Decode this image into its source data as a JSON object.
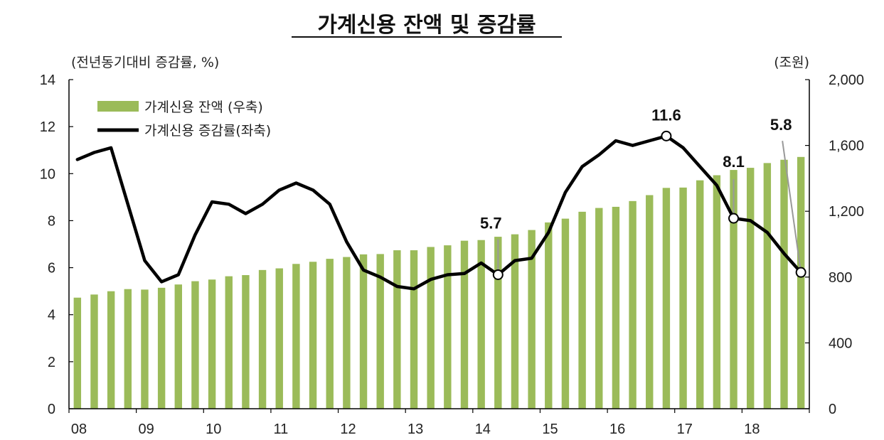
{
  "chart_data": {
    "type": "bar+line",
    "title": "가계신용 잔액 및 증감률",
    "left_axis": {
      "label": "(전년동기대비 증감률, %)",
      "ylim": [
        0,
        14
      ],
      "ticks": [
        "0",
        "2",
        "4",
        "6",
        "8",
        "10",
        "12",
        "14"
      ]
    },
    "right_axis": {
      "label": "(조원)",
      "ylim": [
        0,
        2000
      ],
      "ticks": [
        "0",
        "400",
        "800",
        "1,200",
        "1,600",
        "2,000"
      ]
    },
    "x_axis": {
      "tick_labels": [
        "08",
        "09",
        "10",
        "11",
        "12",
        "13",
        "14",
        "15",
        "16",
        "17",
        "18"
      ]
    },
    "legend": {
      "placement": "top-left",
      "entries": [
        "가계신용 잔액 (우축)",
        "가계신용 증감률(좌축)"
      ]
    },
    "colors": {
      "bar": "#9bbb59",
      "line": "#000000",
      "axis": "#000000"
    },
    "series": [
      {
        "name": "가계신용 잔액 (우축)",
        "axis": "right",
        "type": "bar",
        "values": [
          675,
          694,
          714,
          727,
          724,
          735,
          755,
          775,
          785,
          805,
          812,
          843,
          853,
          880,
          893,
          911,
          922,
          938,
          940,
          963,
          963,
          983,
          993,
          1021,
          1025,
          1045,
          1060,
          1086,
          1132,
          1155,
          1197,
          1220,
          1227,
          1262,
          1298,
          1342,
          1344,
          1388,
          1419,
          1451,
          1464,
          1493,
          1513,
          1530
        ]
      },
      {
        "name": "가계신용 증감률(좌축)",
        "axis": "left",
        "type": "line",
        "values": [
          10.6,
          10.9,
          11.1,
          8.7,
          6.3,
          5.4,
          5.7,
          7.4,
          8.8,
          8.7,
          8.3,
          8.7,
          9.3,
          9.6,
          9.3,
          8.7,
          7.1,
          5.9,
          5.6,
          5.2,
          5.1,
          5.5,
          5.7,
          5.75,
          6.2,
          5.7,
          6.3,
          6.4,
          7.5,
          9.2,
          10.3,
          10.8,
          11.4,
          11.2,
          11.4,
          11.6,
          11.1,
          10.3,
          9.5,
          8.1,
          8.0,
          7.5,
          6.6,
          5.8
        ]
      }
    ],
    "annotations": [
      {
        "label": "5.7",
        "index": 25
      },
      {
        "label": "11.6",
        "index": 35
      },
      {
        "label": "8.1",
        "index": 39
      },
      {
        "label": "5.8",
        "index": 43
      }
    ]
  }
}
